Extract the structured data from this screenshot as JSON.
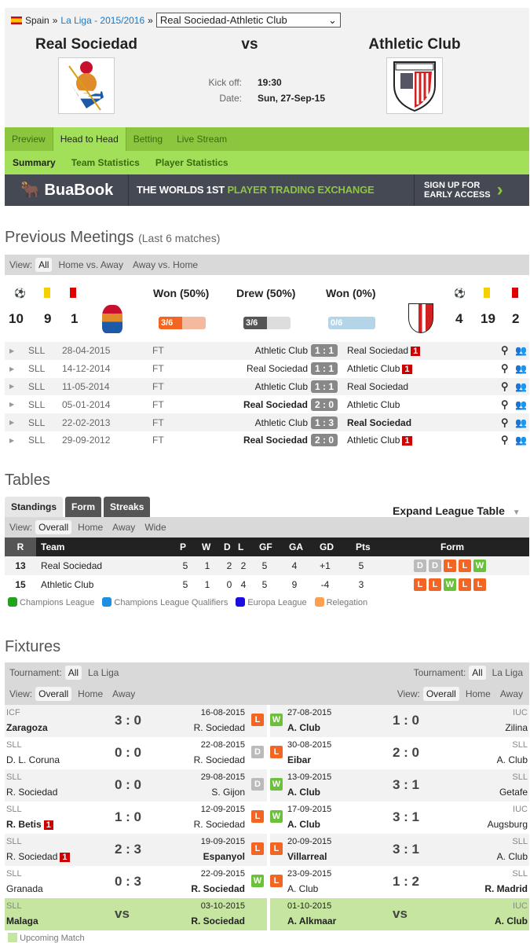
{
  "breadcrumb": {
    "country": "Spain",
    "league": "La Liga - 2015/2016",
    "sep": "»",
    "match_select": "Real Sociedad-Athletic Club"
  },
  "match": {
    "home": "Real Sociedad",
    "away": "Athletic Club",
    "vs": "vs",
    "kickoff_label": "Kick off:",
    "kickoff": "19:30",
    "date_label": "Date:",
    "date": "Sun, 27-Sep-15"
  },
  "tabs": [
    "Preview",
    "Head to Head",
    "Betting",
    "Live Stream"
  ],
  "subtabs": [
    "Summary",
    "Team Statistics",
    "Player Statistics"
  ],
  "banner": {
    "brand": "BuaBook",
    "tagline_a": "THE WORLDS 1ST ",
    "tagline_b": "PLAYER TRADING EXCHANGE",
    "cta_1": "SIGN UP FOR",
    "cta_2": "EARLY ACCESS"
  },
  "previous": {
    "title": "Previous Meetings",
    "subtitle": "(Last 6 matches)",
    "view_label": "View:",
    "views": [
      "All",
      "Home vs. Away",
      "Away vs. Home"
    ],
    "home_stats": {
      "goals": "10",
      "yellow": "9",
      "red": "1"
    },
    "away_stats": {
      "goals": "4",
      "yellow": "19",
      "red": "2"
    },
    "won_home": {
      "label": "Won (50%)",
      "bar": "3/6",
      "fraction": 0.5
    },
    "drew": {
      "label": "Drew (50%)",
      "bar": "3/6",
      "fraction": 0.5
    },
    "won_away": {
      "label": "Won (0%)",
      "bar": "0/6",
      "fraction": 0
    },
    "matches": [
      {
        "comp": "SLL",
        "date": "28-04-2015",
        "status": "FT",
        "home": "Athletic Club",
        "score": "1 : 1",
        "away": "Real Sociedad",
        "home_red": "",
        "away_red": "1",
        "winner": ""
      },
      {
        "comp": "SLL",
        "date": "14-12-2014",
        "status": "FT",
        "home": "Real Sociedad",
        "score": "1 : 1",
        "away": "Athletic Club",
        "home_red": "",
        "away_red": "1",
        "winner": ""
      },
      {
        "comp": "SLL",
        "date": "11-05-2014",
        "status": "FT",
        "home": "Athletic Club",
        "score": "1 : 1",
        "away": "Real Sociedad",
        "home_red": "",
        "away_red": "",
        "winner": ""
      },
      {
        "comp": "SLL",
        "date": "05-01-2014",
        "status": "FT",
        "home": "Real Sociedad",
        "score": "2 : 0",
        "away": "Athletic Club",
        "home_red": "",
        "away_red": "",
        "winner": "home"
      },
      {
        "comp": "SLL",
        "date": "22-02-2013",
        "status": "FT",
        "home": "Athletic Club",
        "score": "1 : 3",
        "away": "Real Sociedad",
        "home_red": "",
        "away_red": "",
        "winner": "away"
      },
      {
        "comp": "SLL",
        "date": "29-09-2012",
        "status": "FT",
        "home": "Real Sociedad",
        "score": "2 : 0",
        "away": "Athletic Club",
        "home_red": "",
        "away_red": "1",
        "winner": "home"
      }
    ]
  },
  "tables": {
    "title": "Tables",
    "tabs": [
      "Standings",
      "Form",
      "Streaks"
    ],
    "expand": "Expand League Table",
    "view_label": "View:",
    "views": [
      "Overall",
      "Home",
      "Away",
      "Wide"
    ],
    "headers": [
      "R",
      "Team",
      "P",
      "W",
      "D",
      "L",
      "GF",
      "GA",
      "GD",
      "Pts",
      "Form"
    ],
    "rows": [
      {
        "r": "13",
        "team": "Real Sociedad",
        "p": "5",
        "w": "1",
        "d": "2",
        "l": "2",
        "gf": "5",
        "ga": "4",
        "gd": "+1",
        "pts": "5",
        "form": [
          "D",
          "D",
          "L",
          "L",
          "W"
        ]
      },
      {
        "r": "15",
        "team": "Athletic Club",
        "p": "5",
        "w": "1",
        "d": "0",
        "l": "4",
        "gf": "5",
        "ga": "9",
        "gd": "-4",
        "pts": "3",
        "form": [
          "L",
          "L",
          "W",
          "L",
          "L"
        ]
      }
    ],
    "legend": [
      {
        "label": "Champions League",
        "color": "#22a31e"
      },
      {
        "label": "Champions League Qualifiers",
        "color": "#1e8fe0"
      },
      {
        "label": "Europa League",
        "color": "#1a0de0"
      },
      {
        "label": "Relegation",
        "color": "#ffa050"
      }
    ]
  },
  "fixtures": {
    "title": "Fixtures",
    "tournament_label": "Tournament:",
    "tournaments": [
      "All",
      "La Liga"
    ],
    "view_label": "View:",
    "views": [
      "Overall",
      "Home",
      "Away"
    ],
    "left": [
      {
        "comp": "ICF",
        "home": "Zaragoza",
        "score": "3 : 0",
        "date": "16-08-2015",
        "away": "R. Sociedad",
        "result": "L",
        "bold": "home",
        "home_red": ""
      },
      {
        "comp": "SLL",
        "home": "D. L. Coruna",
        "score": "0 : 0",
        "date": "22-08-2015",
        "away": "R. Sociedad",
        "result": "D",
        "bold": "",
        "home_red": ""
      },
      {
        "comp": "SLL",
        "home": "R. Sociedad",
        "score": "0 : 0",
        "date": "29-08-2015",
        "away": "S. Gijon",
        "result": "D",
        "bold": "",
        "home_red": ""
      },
      {
        "comp": "SLL",
        "home": "R. Betis",
        "score": "1 : 0",
        "date": "12-09-2015",
        "away": "R. Sociedad",
        "result": "L",
        "bold": "home",
        "home_red": "1"
      },
      {
        "comp": "SLL",
        "home": "R. Sociedad",
        "score": "2 : 3",
        "date": "19-09-2015",
        "away": "Espanyol",
        "result": "L",
        "bold": "away",
        "home_red": "1"
      },
      {
        "comp": "SLL",
        "home": "Granada",
        "score": "0 : 3",
        "date": "22-09-2015",
        "away": "R. Sociedad",
        "result": "W",
        "bold": "away",
        "home_red": ""
      }
    ],
    "right": [
      {
        "comp": "IUC",
        "home": "A. Club",
        "score": "1 : 0",
        "date": "27-08-2015",
        "away": "Zilina",
        "result": "W",
        "bold": "home"
      },
      {
        "comp": "SLL",
        "home": "Eibar",
        "score": "2 : 0",
        "date": "30-08-2015",
        "away": "A. Club",
        "result": "L",
        "bold": "home"
      },
      {
        "comp": "SLL",
        "home": "A. Club",
        "score": "3 : 1",
        "date": "13-09-2015",
        "away": "Getafe",
        "result": "W",
        "bold": "home"
      },
      {
        "comp": "IUC",
        "home": "A. Club",
        "score": "3 : 1",
        "date": "17-09-2015",
        "away": "Augsburg",
        "result": "W",
        "bold": "home"
      },
      {
        "comp": "SLL",
        "home": "Villarreal",
        "score": "3 : 1",
        "date": "20-09-2015",
        "away": "A. Club",
        "result": "L",
        "bold": "home"
      },
      {
        "comp": "SLL",
        "home": "A. Club",
        "score": "1 : 2",
        "date": "23-09-2015",
        "away": "R. Madrid",
        "result": "L",
        "bold": "away"
      }
    ],
    "upcoming_left": {
      "comp": "SLL",
      "home": "Malaga",
      "vs": "vs",
      "date": "03-10-2015",
      "away": "R. Sociedad"
    },
    "upcoming_right": {
      "comp": "IUC",
      "home": "A. Alkmaar",
      "vs": "vs",
      "date": "01-10-2015",
      "away": "A. Club"
    },
    "legend": "Upcoming Match",
    "upcoming_color": "#c5e5a0"
  }
}
